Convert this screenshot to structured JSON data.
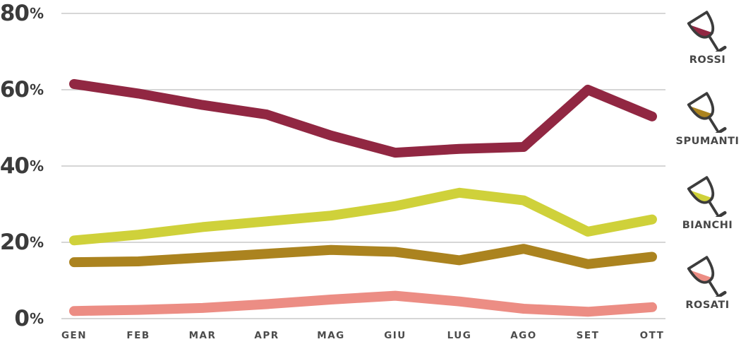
{
  "chart_data": {
    "type": "line",
    "title": "",
    "categories": [
      "GEN",
      "FEB",
      "MAR",
      "APR",
      "MAG",
      "GIU",
      "LUG",
      "AGO",
      "SET",
      "OTT"
    ],
    "y_axis": {
      "tick_values": [
        80,
        60,
        40,
        20,
        0
      ],
      "suffix": "%",
      "min": 0,
      "max": 80
    },
    "grid": "horizontal",
    "legend_position": "right",
    "series": [
      {
        "name": "ROSSI",
        "color": "#912742",
        "values": [
          61.5,
          59,
          56,
          53.5,
          48,
          43.5,
          44.5,
          45,
          60,
          53
        ]
      },
      {
        "name": "SPUMANTI",
        "color": "#ab831f",
        "values": [
          14.8,
          15,
          16,
          17,
          18,
          17.5,
          15.3,
          18.3,
          14.3,
          16.2
        ]
      },
      {
        "name": "BIANCHI",
        "color": "#cfd13a",
        "values": [
          20.5,
          22,
          24,
          25.5,
          27,
          29.5,
          33,
          31,
          22.8,
          26
        ]
      },
      {
        "name": "ROSATI",
        "color": "#ec8d84",
        "values": [
          2,
          2.3,
          2.8,
          3.8,
          5,
          6,
          4.5,
          2.6,
          1.8,
          3
        ]
      }
    ]
  },
  "legend": {
    "items": [
      {
        "label": "ROSSI",
        "icon": "wine-glass-icon",
        "color": "#912742"
      },
      {
        "label": "SPUMANTI",
        "icon": "wine-glass-icon",
        "color": "#ab831f"
      },
      {
        "label": "BIANCHI",
        "icon": "wine-glass-icon",
        "color": "#cfd13a"
      },
      {
        "label": "ROSATI",
        "icon": "wine-glass-icon",
        "color": "#ec8d84"
      }
    ]
  },
  "colors": {
    "background": "#ffffff",
    "gridline": "#d6d6d6",
    "y_tick_text": "#3b3b3b",
    "x_label_text": "#4c4c4c",
    "glass_outline": "#3c3c3c"
  }
}
